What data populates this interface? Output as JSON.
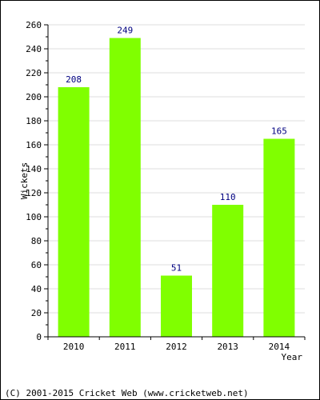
{
  "chart_data": {
    "type": "bar",
    "categories": [
      "2010",
      "2011",
      "2012",
      "2013",
      "2014"
    ],
    "values": [
      208,
      249,
      51,
      110,
      165
    ],
    "data_labels": [
      "208",
      "249",
      "51",
      "110",
      "165"
    ],
    "xlabel": "Year",
    "ylabel": "Wickets",
    "ylim": [
      0,
      260
    ],
    "yticks": [
      "0",
      "20",
      "40",
      "60",
      "80",
      "100",
      "120",
      "140",
      "160",
      "180",
      "200",
      "220",
      "240",
      "260"
    ],
    "grid": true,
    "bar_color": "#80ff00",
    "value_label_color": "#000080",
    "grid_color": "#dddddd"
  },
  "footer": {
    "text": "(C) 2001-2015 Cricket Web (www.cricketweb.net)"
  }
}
